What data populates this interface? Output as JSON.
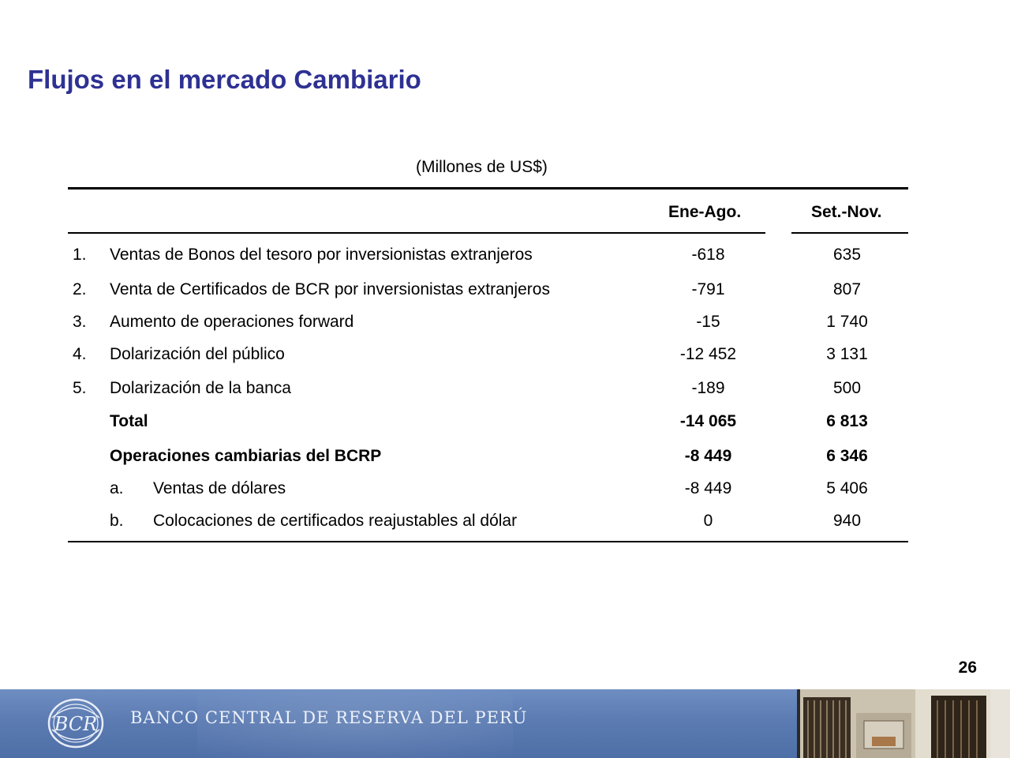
{
  "title": "Flujos en el mercado Cambiario",
  "units": "(Millones de US$)",
  "columns": [
    "Ene-Ago.",
    "Set.-Nov."
  ],
  "rows": [
    {
      "num": "1.",
      "label": "Ventas de Bonos del tesoro por inversionistas extranjeros",
      "v1": "-618",
      "v2": "635"
    },
    {
      "num": "2.",
      "label": "Venta de Certificados de BCR por inversionistas extranjeros",
      "v1": "-791",
      "v2": "807"
    },
    {
      "num": "3.",
      "label": "Aumento de operaciones forward",
      "v1": "-15",
      "v2": "1 740"
    },
    {
      "num": "4.",
      "label": "Dolarización del público",
      "v1": "-12 452",
      "v2": "3 131"
    },
    {
      "num": "5.",
      "label": "Dolarización de la banca",
      "v1": "-189",
      "v2": "500"
    }
  ],
  "total": {
    "label": "Total",
    "v1": "-14 065",
    "v2": "6 813"
  },
  "bcrp": {
    "label": "Operaciones cambiarias del BCRP",
    "v1": "-8 449",
    "v2": "6 346"
  },
  "subrows": [
    {
      "letter": "a.",
      "label": "Ventas de dólares",
      "v1": "-8 449",
      "v2": "5 406"
    },
    {
      "letter": "b.",
      "label": "Colocaciones de certificados reajustables al dólar",
      "v1": "0",
      "v2": "940"
    }
  ],
  "page_number": "26",
  "footer": {
    "bank_name": "BANCO CENTRAL DE RESERVA DEL PERÚ",
    "logo_text": "BCR",
    "colors": {
      "band": "#5b7bb2",
      "title": "#2e3192"
    }
  }
}
